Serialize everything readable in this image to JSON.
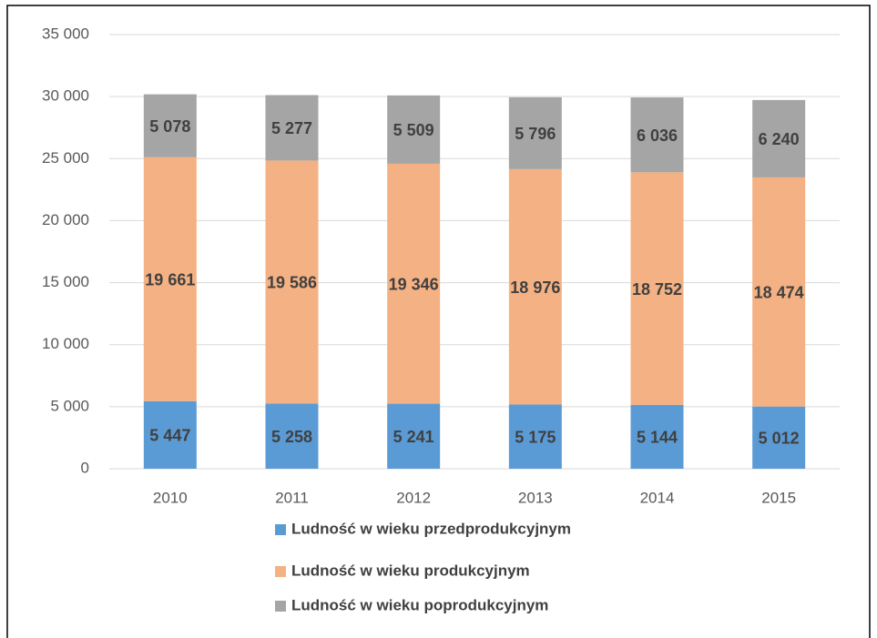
{
  "chart_data": {
    "type": "stacked_bar",
    "categories": [
      "2010",
      "2011",
      "2012",
      "2013",
      "2014",
      "2015"
    ],
    "series": [
      {
        "name": "Ludność w wieku przedprodukcyjnym",
        "color": "#5b9bd5",
        "values": [
          5447,
          5258,
          5241,
          5175,
          5144,
          5012
        ],
        "value_labels": [
          "5 447",
          "5 258",
          "5 241",
          "5 175",
          "5 144",
          "5 012"
        ]
      },
      {
        "name": "Ludność w wieku produkcyjnym",
        "color": "#f4b183",
        "values": [
          19661,
          19586,
          19346,
          18976,
          18752,
          18474
        ],
        "value_labels": [
          "19 661",
          "19 586",
          "19 346",
          "18 976",
          "18 752",
          "18 474"
        ]
      },
      {
        "name": "Ludność w wieku poprodukcyjnym",
        "color": "#a5a5a5",
        "values": [
          5078,
          5277,
          5509,
          5796,
          6036,
          6240
        ],
        "value_labels": [
          "5 078",
          "5 277",
          "5 509",
          "5 796",
          "6 036",
          "6 240"
        ]
      }
    ],
    "ylim": [
      0,
      35000
    ],
    "yticks": [
      {
        "value": 0,
        "label": "0"
      },
      {
        "value": 5000,
        "label": "5 000"
      },
      {
        "value": 10000,
        "label": "10 000"
      },
      {
        "value": 15000,
        "label": "15 000"
      },
      {
        "value": 20000,
        "label": "20 000"
      },
      {
        "value": 25000,
        "label": "25 000"
      },
      {
        "value": 30000,
        "label": "30 000"
      },
      {
        "value": 35000,
        "label": "35 000"
      }
    ],
    "grid": true,
    "legend": "bottom"
  }
}
